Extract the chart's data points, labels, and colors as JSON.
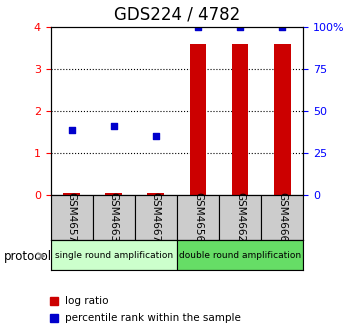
{
  "title": "GDS224 / 4782",
  "samples": [
    "GSM4657",
    "GSM4663",
    "GSM4667",
    "GSM4656",
    "GSM4662",
    "GSM4666"
  ],
  "log_ratio": [
    0.05,
    0.05,
    0.05,
    3.6,
    3.6,
    3.6
  ],
  "percentile_rank": [
    1.55,
    1.65,
    1.4,
    4.0,
    4.0,
    4.0
  ],
  "bar_color": "#cc0000",
  "dot_color": "#0000cc",
  "ylim_left": [
    0,
    4
  ],
  "ylim_right": [
    0,
    100
  ],
  "yticks_left": [
    0,
    1,
    2,
    3,
    4
  ],
  "yticks_right": [
    0,
    25,
    50,
    75,
    100
  ],
  "ytick_labels_right": [
    "0",
    "25",
    "50",
    "75",
    "100%"
  ],
  "group1_label": "single round amplification",
  "group2_label": "double round amplification",
  "group1_color": "#ccffcc",
  "group2_color": "#66dd66",
  "protocol_label": "protocol",
  "legend_log_ratio": "log ratio",
  "legend_percentile": "percentile rank within the sample",
  "bar_width": 0.4,
  "title_fontsize": 12,
  "tick_fontsize": 8,
  "label_cell_color": "#cccccc"
}
